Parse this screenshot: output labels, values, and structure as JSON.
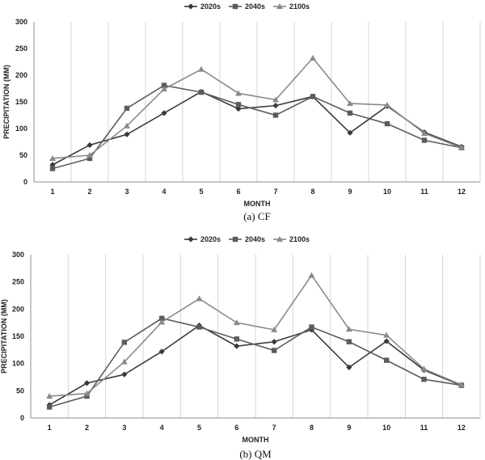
{
  "chart_data": [
    {
      "type": "line",
      "caption": "(a)  CF",
      "xlabel": "MONTH",
      "ylabel": "PRECIPITATION (MM)",
      "ylim": [
        0,
        300
      ],
      "y_ticks": [
        0,
        50,
        100,
        150,
        200,
        250,
        300
      ],
      "grid": "vertical",
      "legend_position": "top",
      "categories": [
        "1",
        "2",
        "3",
        "4",
        "5",
        "6",
        "7",
        "8",
        "9",
        "10",
        "11",
        "12"
      ],
      "series": [
        {
          "name": "2020s",
          "marker": "diamond",
          "color": "#3a3a3a",
          "values": [
            32,
            69,
            89,
            129,
            169,
            137,
            143,
            160,
            92,
            142,
            93,
            66
          ]
        },
        {
          "name": "2040s",
          "marker": "square",
          "color": "#5c5c5c",
          "values": [
            25,
            44,
            138,
            181,
            168,
            145,
            125,
            160,
            129,
            109,
            78,
            64
          ]
        },
        {
          "name": "2100s",
          "marker": "triangle",
          "color": "#8a8a8a",
          "values": [
            44,
            50,
            105,
            174,
            211,
            166,
            154,
            232,
            147,
            144,
            91,
            64
          ]
        }
      ]
    },
    {
      "type": "line",
      "caption": "(b)  QM",
      "xlabel": "MONTH",
      "ylabel": "PRECIPITATION (MM)",
      "ylim": [
        0,
        300
      ],
      "y_ticks": [
        0,
        50,
        100,
        150,
        200,
        250,
        300
      ],
      "grid": "vertical",
      "legend_position": "top",
      "categories": [
        "1",
        "2",
        "3",
        "4",
        "5",
        "6",
        "7",
        "8",
        "9",
        "10",
        "11",
        "12"
      ],
      "series": [
        {
          "name": "2020s",
          "marker": "diamond",
          "color": "#3a3a3a",
          "values": [
            24,
            64,
            80,
            122,
            170,
            132,
            140,
            162,
            93,
            141,
            88,
            60
          ]
        },
        {
          "name": "2040s",
          "marker": "square",
          "color": "#5c5c5c",
          "values": [
            20,
            40,
            139,
            183,
            167,
            145,
            124,
            167,
            140,
            106,
            71,
            60
          ]
        },
        {
          "name": "2100s",
          "marker": "triangle",
          "color": "#8a8a8a",
          "values": [
            40,
            45,
            103,
            176,
            219,
            175,
            162,
            262,
            163,
            152,
            90,
            61
          ]
        }
      ]
    }
  ]
}
